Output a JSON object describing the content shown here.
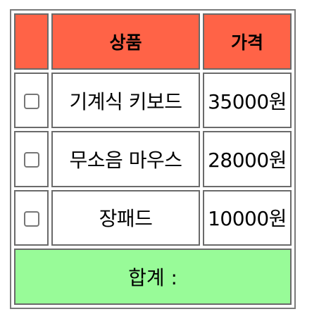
{
  "cart": {
    "headers": {
      "check": "",
      "product": "상품",
      "price": "가격"
    },
    "items": [
      {
        "name": "기계식 키보드",
        "price": "35000원",
        "checked": false
      },
      {
        "name": "무소음 마우스",
        "price": "28000원",
        "checked": false
      },
      {
        "name": "장패드",
        "price": "10000원",
        "checked": false
      }
    ],
    "total_label": "합계 :"
  },
  "colors": {
    "header_bg": "#ff6347",
    "total_bg": "#98fb98"
  }
}
